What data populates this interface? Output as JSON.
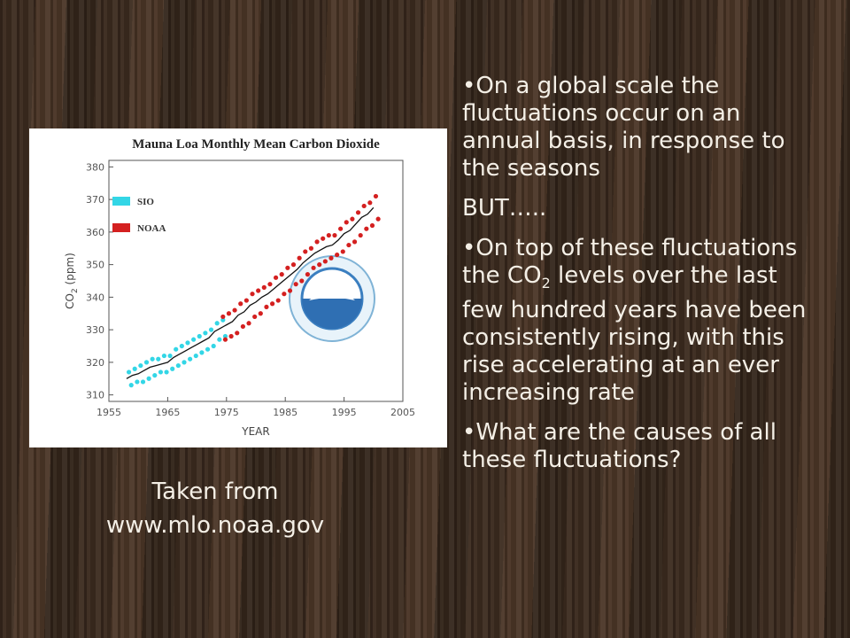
{
  "slide": {
    "caption": [
      "Taken from",
      "www.mlo.noaa.gov"
    ],
    "bullet1": "On a global scale the fluctuations occur on an annual basis, in response to the seasons",
    "but": "BUT…..",
    "bullet2": {
      "before": "On top of these fluctuations the CO",
      "sub": "2",
      "after": " levels over the last few hundred years have been consistently rising, with this rise accelerating at an ever increasing rate"
    },
    "bullet3": "What are the causes of all these fluctuations?"
  },
  "chart_data": {
    "type": "scatter",
    "title": "Mauna Loa Monthly Mean Carbon Dioxide",
    "x_label": "YEAR",
    "y_label": {
      "main": "CO",
      "sub": "2",
      "unit": " (ppm)"
    },
    "xlim": [
      1955,
      2005
    ],
    "xticks": [
      1955,
      1965,
      1975,
      1985,
      1995,
      2005
    ],
    "ylim": [
      308,
      382
    ],
    "yticks": [
      310,
      320,
      330,
      340,
      350,
      360,
      370,
      380
    ],
    "series": [
      {
        "name": "SIO",
        "color": "#33d6e6",
        "x": [
          1958.4,
          1958.8,
          1959.4,
          1959.8,
          1960.4,
          1960.8,
          1961.4,
          1961.8,
          1962.4,
          1962.8,
          1963.4,
          1963.8,
          1964.4,
          1964.8,
          1965.4,
          1965.8,
          1966.4,
          1966.8,
          1967.4,
          1967.8,
          1968.4,
          1968.8,
          1969.4,
          1969.8,
          1970.4,
          1970.8,
          1971.4,
          1971.8,
          1972.4,
          1972.8,
          1973.4,
          1973.8,
          1974.4,
          1974.8
        ],
        "values": [
          317,
          313,
          318,
          314,
          319,
          314,
          320,
          315,
          321,
          316,
          321,
          317,
          322,
          317,
          322,
          318,
          324,
          319,
          325,
          320,
          326,
          321,
          327,
          322,
          328,
          323,
          329,
          324,
          330,
          325,
          332,
          327,
          333,
          328
        ]
      },
      {
        "name": "NOAA",
        "color": "#d42020",
        "x": [
          1974.4,
          1974.8,
          1975.4,
          1975.8,
          1976.4,
          1976.8,
          1977.4,
          1977.8,
          1978.4,
          1978.8,
          1979.4,
          1979.8,
          1980.4,
          1980.8,
          1981.4,
          1981.8,
          1982.4,
          1982.8,
          1983.4,
          1983.8,
          1984.4,
          1984.8,
          1985.4,
          1985.8,
          1986.4,
          1986.8,
          1987.4,
          1987.8,
          1988.4,
          1988.8,
          1989.4,
          1989.8,
          1990.4,
          1990.8,
          1991.4,
          1991.8,
          1992.4,
          1992.8,
          1993.4,
          1993.8,
          1994.4,
          1994.8,
          1995.4,
          1995.8,
          1996.4,
          1996.8,
          1997.4,
          1997.8,
          1998.4,
          1998.8,
          1999.4,
          1999.8,
          2000.4,
          2000.8
        ],
        "values": [
          334,
          327,
          335,
          328,
          336,
          329,
          338,
          331,
          339,
          332,
          341,
          334,
          342,
          335,
          343,
          337,
          344,
          338,
          346,
          339,
          347,
          341,
          349,
          342,
          350,
          344,
          352,
          345,
          354,
          347,
          355,
          349,
          357,
          350,
          358,
          351,
          359,
          352,
          359,
          353,
          361,
          354,
          363,
          356,
          364,
          357,
          366,
          359,
          368,
          361,
          369,
          362,
          371,
          364
        ]
      },
      {
        "color": "#111111",
        "line": true,
        "x": [
          1958,
          1959,
          1960,
          1961,
          1962,
          1963,
          1964,
          1965,
          1966,
          1967,
          1968,
          1969,
          1970,
          1971,
          1972,
          1973,
          1974,
          1975,
          1976,
          1977,
          1978,
          1979,
          1980,
          1981,
          1982,
          1983,
          1984,
          1985,
          1986,
          1987,
          1988,
          1989,
          1990,
          1991,
          1992,
          1993,
          1994,
          1995,
          1996,
          1997,
          1998,
          1999,
          2000
        ],
        "values": [
          315,
          316,
          316.5,
          317.5,
          318.5,
          319,
          319.5,
          320,
          321.5,
          322.5,
          323.5,
          324.5,
          325.5,
          326.5,
          327.5,
          329.5,
          330.5,
          331.5,
          332.5,
          334.5,
          335.5,
          337.5,
          338.5,
          340,
          341,
          342.5,
          344,
          345.5,
          347,
          348.5,
          350.5,
          352,
          353.5,
          354.5,
          355.5,
          356,
          357.5,
          359.5,
          360.5,
          362.5,
          364.5,
          365.5,
          367.5
        ]
      }
    ]
  }
}
